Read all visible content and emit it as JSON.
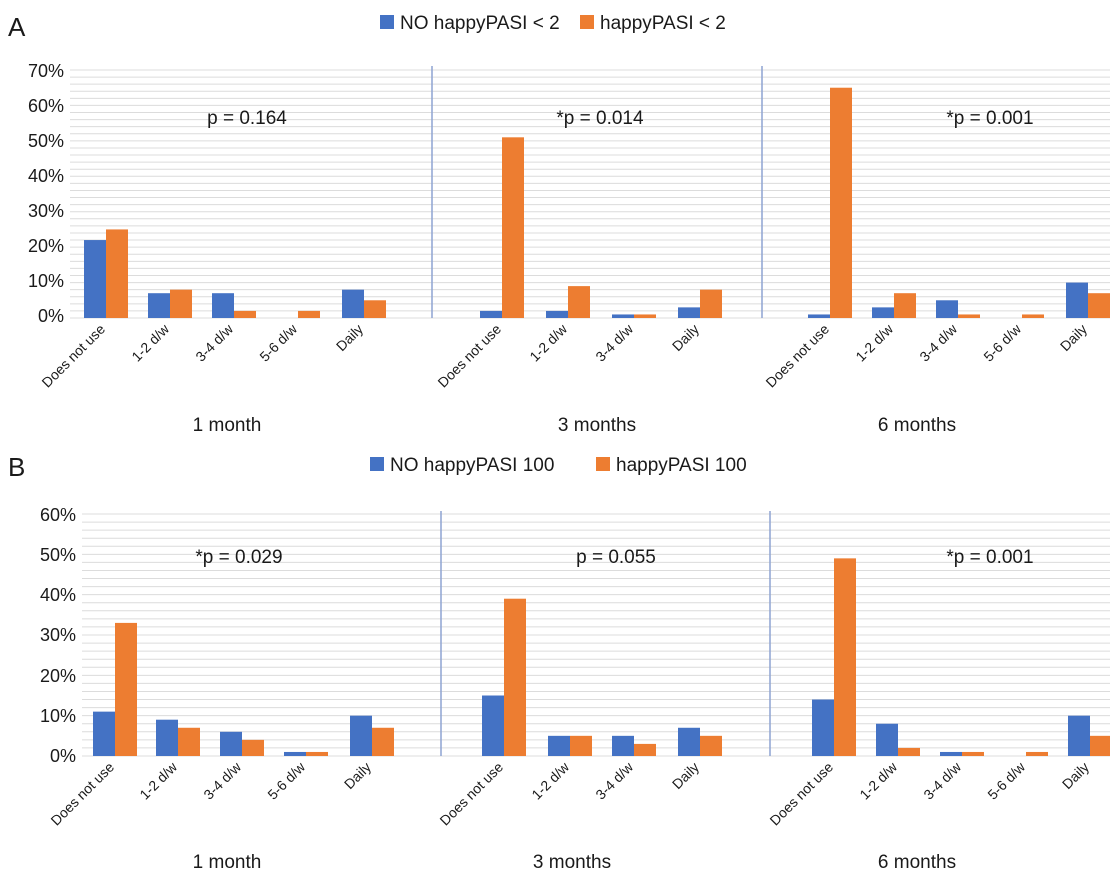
{
  "colors": {
    "series_blue": "#4472c4",
    "series_orange": "#ed7d31"
  },
  "chart_data": [
    {
      "type": "bar",
      "panel": "A",
      "yticks": [
        "70%",
        "60%",
        "50%",
        "40%",
        "30%",
        "20%",
        "10%",
        "0%"
      ],
      "ylim": [
        0,
        70
      ],
      "grid": true,
      "legend_position": "top-center",
      "series": [
        {
          "name": "NO happyPASI < 2",
          "color": "#4472c4"
        },
        {
          "name": "happyPASI < 2",
          "color": "#ed7d31"
        }
      ],
      "groups": [
        {
          "label": "1 month",
          "pvalue": "p = 0.164",
          "categories": [
            "Does not use",
            "1-2 d/w",
            "3-4 d/w",
            "5-6 d/w",
            "Daily"
          ],
          "values": [
            [
              22,
              7,
              7,
              0,
              8
            ],
            [
              25,
              8,
              2,
              2,
              5
            ]
          ]
        },
        {
          "label": "3 months",
          "pvalue": "*p = 0.014",
          "categories": [
            "Does not use",
            "1-2 d/w",
            "3-4 d/w",
            "Daily"
          ],
          "values": [
            [
              2,
              2,
              1,
              3
            ],
            [
              51,
              9,
              1,
              8
            ]
          ]
        },
        {
          "label": "6 months",
          "pvalue": "*p = 0.001",
          "categories": [
            "Does not use",
            "1-2 d/w",
            "3-4 d/w",
            "5-6 d/w",
            "Daily"
          ],
          "values": [
            [
              1,
              3,
              5,
              0,
              10
            ],
            [
              65,
              7,
              1,
              1,
              7
            ]
          ]
        }
      ]
    },
    {
      "type": "bar",
      "panel": "B",
      "yticks": [
        "60%",
        "50%",
        "40%",
        "30%",
        "20%",
        "10%",
        "0%"
      ],
      "ylim": [
        0,
        60
      ],
      "grid": true,
      "legend_position": "top-center",
      "series": [
        {
          "name": "NO happyPASI 100",
          "color": "#4472c4"
        },
        {
          "name": "happyPASI 100",
          "color": "#ed7d31"
        }
      ],
      "groups": [
        {
          "label": "1 month",
          "pvalue": "*p = 0.029",
          "categories": [
            "Does not use",
            "1-2 d/w",
            "3-4 d/w",
            "5-6 d/w",
            "Daily"
          ],
          "values": [
            [
              11,
              9,
              6,
              1,
              10
            ],
            [
              33,
              7,
              4,
              1,
              7
            ]
          ]
        },
        {
          "label": "3 months",
          "pvalue": "p = 0.055",
          "categories": [
            "Does not use",
            "1-2 d/w",
            "3-4 d/w",
            "Daily"
          ],
          "values": [
            [
              15,
              5,
              5,
              7
            ],
            [
              39,
              5,
              3,
              5
            ]
          ]
        },
        {
          "label": "6 months",
          "pvalue": "*p = 0.001",
          "categories": [
            "Does not use",
            "1-2 d/w",
            "3-4 d/w",
            "5-6 d/w",
            "Daily"
          ],
          "values": [
            [
              14,
              8,
              1,
              0,
              10
            ],
            [
              49,
              2,
              1,
              1,
              5
            ]
          ]
        }
      ]
    }
  ]
}
